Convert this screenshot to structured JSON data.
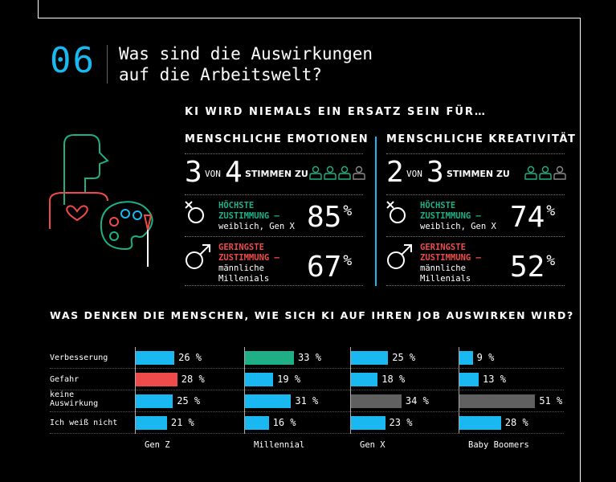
{
  "section_number": "06",
  "title_line1": "Was sind die Auswirkungen",
  "title_line2": "auf die Arbeitswelt?",
  "subhead": "KI WIRD NIEMALS EIN ERSATZ SEIN FÜR…",
  "columns": [
    {
      "heading": "MENSCHLICHE EMOTIONEN",
      "agree_num": "3",
      "von": "VON",
      "agree_den": "4",
      "stimmen": "STIMMEN ZU",
      "high_label1": "HÖCHSTE",
      "high_label2": "ZUSTIMMUNG –",
      "high_label3": "weiblich, Gen X",
      "high_pct": "85",
      "low_label1": "GERINGSTE",
      "low_label2": "ZUSTIMMUNG –",
      "low_label3": "männliche",
      "low_label4": "Millenials",
      "low_pct": "67"
    },
    {
      "heading": "MENSCHLICHE KREATIVITÄT",
      "agree_num": "2",
      "von": "VON",
      "agree_den": "3",
      "stimmen": "STIMMEN ZU",
      "high_label1": "HÖCHSTE",
      "high_label2": "ZUSTIMMUNG –",
      "high_label3": "weiblich, Gen X",
      "high_pct": "74",
      "low_label1": "GERINGSTE",
      "low_label2": "ZUSTIMMUNG –",
      "low_label3": "männliche",
      "low_label4": "Millenials",
      "low_pct": "52"
    }
  ],
  "percent_sign": "%",
  "question": "WAS DENKEN DIE MENSCHEN, WIE SICH KI AUF IHREN JOB AUSWIRKEN WIRD?",
  "colors": {
    "blue": "#19b8f0",
    "green": "#1faf87",
    "red": "#ef4b4b",
    "gray": "#606060"
  },
  "chart_data": {
    "type": "bar",
    "orientation": "horizontal",
    "categories": [
      "Verbesserung",
      "Gefahr",
      "keine Auswirkung",
      "Ich weiß nicht"
    ],
    "groups": [
      {
        "name": "Gen Z",
        "values": [
          26,
          28,
          25,
          21
        ],
        "highlight": {
          "1": "red"
        }
      },
      {
        "name": "Millennial",
        "values": [
          33,
          19,
          31,
          16
        ],
        "highlight": {
          "0": "green"
        }
      },
      {
        "name": "Gen X",
        "values": [
          25,
          18,
          34,
          23
        ],
        "highlight": {
          "2": "gray"
        }
      },
      {
        "name": "Baby Boomers",
        "values": [
          9,
          13,
          51,
          28
        ],
        "highlight": {
          "2": "gray"
        }
      }
    ],
    "unit": "%"
  }
}
